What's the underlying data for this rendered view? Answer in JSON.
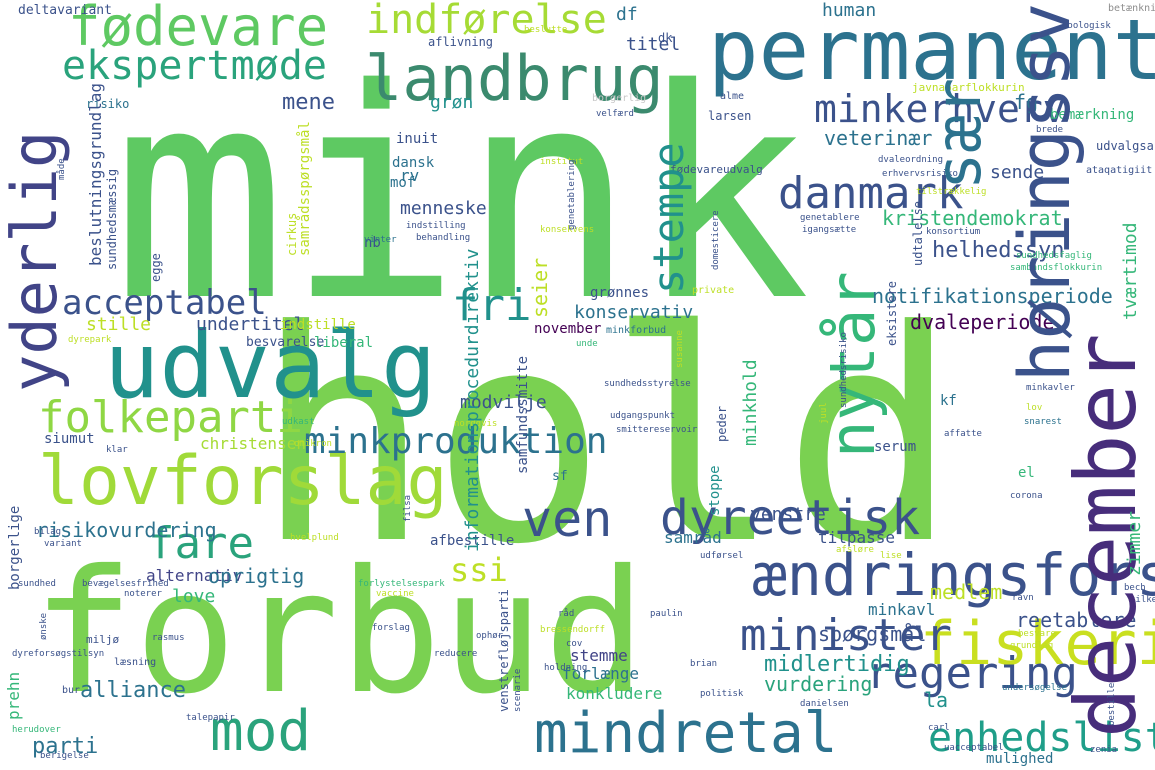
{
  "palette": {
    "lime": "#7ad151",
    "green": "#5ec962",
    "teal": "#21918c",
    "blue": "#2c728e",
    "indigo": "#3b528b",
    "purple": "#472d7b",
    "dark": "#440154",
    "yellow": "#bddf26",
    "sea": "#22a884",
    "cyan": "#1f9e89"
  },
  "words": [
    {
      "text": "mink",
      "color": "#5ec962"
    },
    {
      "text": "hold",
      "color": "#7ad151"
    },
    {
      "text": "forbud",
      "color": "#7ad151"
    },
    {
      "text": "permanent",
      "color": "#2c728e"
    },
    {
      "text": "landbrug",
      "color": "#3b8a6e"
    },
    {
      "text": "fødevare",
      "color": "#5ec962"
    },
    {
      "text": "ekspertmøde",
      "color": "#2aa37c"
    },
    {
      "text": "indførelse",
      "color": "#a6db35"
    },
    {
      "text": "udvalg",
      "color": "#21918c"
    },
    {
      "text": "lovforslag",
      "color": "#a0da39"
    },
    {
      "text": "folkeparti",
      "color": "#414487"
    },
    {
      "text": "acceptabel",
      "color": "#8fd744"
    },
    {
      "text": "minkproduktion",
      "color": "#3b528b"
    },
    {
      "text": "fri",
      "color": "#2c728e"
    },
    {
      "text": "ven",
      "color": "#21918c"
    },
    {
      "text": "fare",
      "color": "#3b528b"
    },
    {
      "text": "dyreetisk",
      "color": "#2aa37c"
    },
    {
      "text": "ændringsforslag",
      "color": "#3b528b"
    },
    {
      "text": "fiskeri",
      "color": "#3b528b"
    },
    {
      "text": "mod",
      "color": "#c9df20"
    },
    {
      "text": "mindretal",
      "color": "#2aa37c"
    },
    {
      "text": "enhedsliste",
      "color": "#2c728e"
    },
    {
      "text": "danmark",
      "color": "#1f9e89"
    },
    {
      "text": "minkerhverv",
      "color": "#472d7b"
    },
    {
      "text": "minister",
      "color": "#3b528b"
    },
    {
      "text": "regering",
      "color": "#35b779"
    },
    {
      "text": "ssi",
      "color": "#2c728e"
    },
    {
      "text": "df",
      "color": "#3b528b"
    },
    {
      "text": "human",
      "color": "#21918c"
    },
    {
      "text": "mene",
      "color": "#3b528b"
    },
    {
      "text": "grøn",
      "color": "#3b528b"
    },
    {
      "text": "fg",
      "color": "#3b528b"
    },
    {
      "text": "veterinær",
      "color": "#bddf26"
    },
    {
      "text": "kristendemokrat",
      "color": "#2c728e"
    },
    {
      "text": "notifikationsperiode",
      "color": "#2c728e"
    },
    {
      "text": "dvaleperiode",
      "color": "#3b528b"
    },
    {
      "text": "konservativ",
      "color": "#21918c"
    },
    {
      "text": "undertitel",
      "color": "#2c728e"
    },
    {
      "text": "indstille",
      "color": "#2c728e"
    },
    {
      "text": "besvarelse",
      "color": "#35b779"
    },
    {
      "text": "liberal",
      "color": "#2c728e"
    },
    {
      "text": "stille",
      "color": "#440154"
    },
    {
      "text": "risikovurdering",
      "color": "#2c728e"
    },
    {
      "text": "siumut",
      "color": "#3b528b"
    },
    {
      "text": "christensen",
      "color": "#bddf26"
    },
    {
      "text": "alternativ",
      "color": "#3b528b"
    },
    {
      "text": "oprigtig",
      "color": "#35b779"
    },
    {
      "text": "love",
      "color": "#bddf26"
    },
    {
      "text": "alliance",
      "color": "#2c728e"
    },
    {
      "text": "parti",
      "color": "#3b528b"
    },
    {
      "text": "spørgsmål",
      "color": "#a6db35"
    },
    {
      "text": "midlertidig",
      "color": "#414487"
    },
    {
      "text": "vurdering",
      "color": "#2c728e"
    },
    {
      "text": "la",
      "color": "#35b779"
    },
    {
      "text": "medlem",
      "color": "#2c728e"
    },
    {
      "text": "reetablere",
      "color": "#2c728e"
    },
    {
      "text": "minkavl",
      "color": "#3b528b"
    },
    {
      "text": "stemme",
      "color": "#21918c"
    },
    {
      "text": "forlænge",
      "color": "#2aa37c"
    },
    {
      "text": "konkludere",
      "color": "#21918c"
    },
    {
      "text": "venstre",
      "color": "#bddf26"
    },
    {
      "text": "tilpasse",
      "color": "#3b528b"
    },
    {
      "text": "helhedssyn",
      "color": "#2c728e"
    },
    {
      "text": "sende",
      "color": "#414487"
    },
    {
      "text": "menneske",
      "color": "#2c728e"
    },
    {
      "text": "modvilje",
      "color": "#35b779"
    },
    {
      "text": "rv",
      "color": "#3b528b"
    },
    {
      "text": "serum",
      "color": "#3b528b"
    },
    {
      "text": "kf",
      "color": "#3b528b"
    },
    {
      "text": "el",
      "color": "#3b528b"
    },
    {
      "text": "nb",
      "color": "#3b528b"
    },
    {
      "text": "mof",
      "color": "#3b528b"
    },
    {
      "text": "dansk",
      "color": "#2c728e"
    },
    {
      "text": "inuit",
      "color": "#3b528b"
    },
    {
      "text": "titel",
      "color": "#2c728e"
    },
    {
      "text": "dk",
      "color": "#35b779"
    },
    {
      "text": "aflivning",
      "color": "#3b528b"
    },
    {
      "text": "larsen",
      "color": "#2c728e"
    },
    {
      "text": "november",
      "color": "#2c728e"
    },
    {
      "text": "grønnes",
      "color": "#3b528b"
    },
    {
      "text": "sf",
      "color": "#3b528b"
    },
    {
      "text": "samråd",
      "color": "#3b528b"
    },
    {
      "text": "afbestille",
      "color": "#3b528b"
    },
    {
      "text": "risiko",
      "color": "#3b528b"
    },
    {
      "text": "bemærkning",
      "color": "#440154"
    },
    {
      "text": "deltavariant",
      "color": "#3b528b"
    },
    {
      "text": "betænkning",
      "color": "#2c728e"
    },
    {
      "text": "borgerlig",
      "color": "#2c728e"
    },
    {
      "text": "alme",
      "color": "#3b528b"
    },
    {
      "text": "javnaðarflokkurin",
      "color": "#2c728e"
    },
    {
      "text": "fødevareudvalg",
      "color": "#3b528b"
    },
    {
      "text": "dvaleordning",
      "color": "#3b528b"
    },
    {
      "text": "erhvervsrisiko",
      "color": "#3b528b"
    },
    {
      "text": "tilstrækkelig",
      "color": "#bddf26"
    },
    {
      "text": "udvalgsarbejde",
      "color": "#bddf26"
    },
    {
      "text": "ataqatigiit",
      "color": "#bddf26"
    },
    {
      "text": "genetablere",
      "color": "#21918c"
    },
    {
      "text": "igangsætte",
      "color": "#3b528b"
    },
    {
      "text": "konsortium",
      "color": "#35b779"
    },
    {
      "text": "sundhedsfaglig",
      "color": "#35b779"
    },
    {
      "text": "sambandsflokkurin",
      "color": "#35b779"
    },
    {
      "text": "sundhedsstyrelse",
      "color": "#21918c"
    },
    {
      "text": "udgangspunkt",
      "color": "#35b779"
    },
    {
      "text": "smittereservoir",
      "color": "#3b528b"
    },
    {
      "text": "minkforbud",
      "color": "#35b779"
    },
    {
      "text": "unde",
      "color": "#3b528b"
    },
    {
      "text": "private",
      "color": "#8e8e8e"
    },
    {
      "text": "udkast",
      "color": "#c8c8c8"
    },
    {
      "text": "klar",
      "color": "#3b528b"
    },
    {
      "text": "omikron",
      "color": "#bddf26"
    },
    {
      "text": "dyrepark",
      "color": "#3b528b"
    },
    {
      "text": "indstilling",
      "color": "#3b528b"
    },
    {
      "text": "behandling",
      "color": "#3b528b"
    },
    {
      "text": "vinter",
      "color": "#bddf26"
    },
    {
      "text": "råd",
      "color": "#3b528b"
    },
    {
      "text": "bilag",
      "color": "#3b528b"
    },
    {
      "text": "variant",
      "color": "#3b528b"
    },
    {
      "text": "sundhed",
      "color": "#3b528b"
    },
    {
      "text": "bevægelsesfrihed",
      "color": "#3b528b"
    },
    {
      "text": "noterer",
      "color": "#3b528b"
    },
    {
      "text": "miljø",
      "color": "#35b779"
    },
    {
      "text": "læsning",
      "color": "#35b779"
    },
    {
      "text": "bur",
      "color": "#3b528b"
    },
    {
      "text": "herudover",
      "color": "#3b528b"
    },
    {
      "text": "talepapir",
      "color": "#3b528b"
    },
    {
      "text": "berigelse",
      "color": "#3b528b"
    },
    {
      "text": "forlystelsespark",
      "color": "#2c728e"
    },
    {
      "text": "vaccine",
      "color": "#35b779"
    },
    {
      "text": "paulin",
      "color": "#bddf26"
    },
    {
      "text": "ophør",
      "color": "#bddf26"
    },
    {
      "text": "cov",
      "color": "#3b528b"
    },
    {
      "text": "reducere",
      "color": "#35b779"
    },
    {
      "text": "holdning",
      "color": "#3b528b"
    },
    {
      "text": "brian",
      "color": "#bddf26"
    },
    {
      "text": "bressendorff",
      "color": "#bddf26"
    },
    {
      "text": "politisk",
      "color": "#3b528b"
    },
    {
      "text": "danielsen",
      "color": "#3b528b"
    },
    {
      "text": "carl",
      "color": "#2c728e"
    },
    {
      "text": "uacceptabel",
      "color": "#3b528b"
    },
    {
      "text": "undersøgelse",
      "color": "#3b528b"
    },
    {
      "text": "zenia",
      "color": "#3b528b"
    },
    {
      "text": "mulighed",
      "color": "#3b528b"
    },
    {
      "text": "ravn",
      "color": "#3b528b"
    },
    {
      "text": "besvare",
      "color": "#3b528b"
    },
    {
      "text": "grundlag",
      "color": "#3b528b"
    },
    {
      "text": "bech",
      "color": "#3b528b"
    },
    {
      "text": "tilkendegive",
      "color": "#3b528b"
    },
    {
      "text": "corona",
      "color": "#35b779"
    },
    {
      "text": "affatte",
      "color": "#3b528b"
    },
    {
      "text": "minkavler",
      "color": "#3b528b"
    },
    {
      "text": "snarest",
      "color": "#35b779"
    },
    {
      "text": "lov",
      "color": "#bddf26"
    },
    {
      "text": "udførsel",
      "color": "#3b528b"
    },
    {
      "text": "afsløre",
      "color": "#3b528b"
    },
    {
      "text": "lise",
      "color": "#3b528b"
    },
    {
      "text": "rasmus",
      "color": "#3b528b"
    },
    {
      "text": "forslag",
      "color": "#3b528b"
    },
    {
      "text": "velfærd",
      "color": "#3b528b"
    },
    {
      "text": "beslutte",
      "color": "#bddf26"
    },
    {
      "text": "zoologisk",
      "color": "#3b528b"
    },
    {
      "text": "hvelplund",
      "color": "#3b528b"
    },
    {
      "text": "nordqvis",
      "color": "#3b528b"
    },
    {
      "text": "brede",
      "color": "#3b528b"
    },
    {
      "text": "dyreforsøgstilsyn",
      "color": "#2c728e"
    },
    {
      "text": "institut",
      "color": "#3b528b"
    },
    {
      "text": "konsekvens",
      "color": "#2c728e"
    },
    {
      "text": "yderlig",
      "color": "#3b528b"
    },
    {
      "text": "december",
      "color": "#bddf26"
    },
    {
      "text": "høringssvar",
      "color": "#bddf26"
    },
    {
      "text": "nytår",
      "color": "#3b528b"
    },
    {
      "text": "sær",
      "color": "#3b528b"
    },
    {
      "text": "stempe",
      "color": "#3b528b"
    },
    {
      "text": "minkhold",
      "color": "#3b528b"
    },
    {
      "text": "tværtimod",
      "color": "#3b528b"
    },
    {
      "text": "zimmer",
      "color": "#3b528b"
    },
    {
      "text": "stoppe",
      "color": "#2c728e"
    },
    {
      "text": "seier",
      "color": "#bddf26"
    },
    {
      "text": "informationsprocedurdirektiv",
      "color": "#bddf26"
    },
    {
      "text": "samfundssmitte",
      "color": "#3b528b"
    },
    {
      "text": "beslutningsgrundlag",
      "color": "#3b528b"
    },
    {
      "text": "sundhedsmæssig",
      "color": "#3b528b"
    },
    {
      "text": "egge",
      "color": "#3b528b"
    },
    {
      "text": "cirkus",
      "color": "#bddf26"
    },
    {
      "text": "samrådsspørgsmål",
      "color": "#bddf26"
    },
    {
      "text": "prehn",
      "color": "#3b528b"
    },
    {
      "text": "borgerlige",
      "color": "#3b528b"
    },
    {
      "text": "venstrefløjsparti",
      "color": "#3b528b"
    },
    {
      "text": "scenarie",
      "color": "#3b528b"
    },
    {
      "text": "peder",
      "color": "#bddf26"
    },
    {
      "text": "juul",
      "color": "#bddf26"
    },
    {
      "text": "sundhedsrisiko",
      "color": "#3b528b"
    },
    {
      "text": "udtalelse",
      "color": "#3b528b"
    },
    {
      "text": "eksistere",
      "color": "#bddf26"
    },
    {
      "text": "domesticere",
      "color": "#3b528b"
    },
    {
      "text": "susanne",
      "color": "#3b528b"
    },
    {
      "text": "bestille",
      "color": "#bddf26"
    },
    {
      "text": "genetablering",
      "color": "#bddf26"
    },
    {
      "text": "måde",
      "color": "#3b528b"
    },
    {
      "text": "filsa",
      "color": "#3b528b"
    },
    {
      "text": "ønske",
      "color": "#3b528b"
    }
  ]
}
